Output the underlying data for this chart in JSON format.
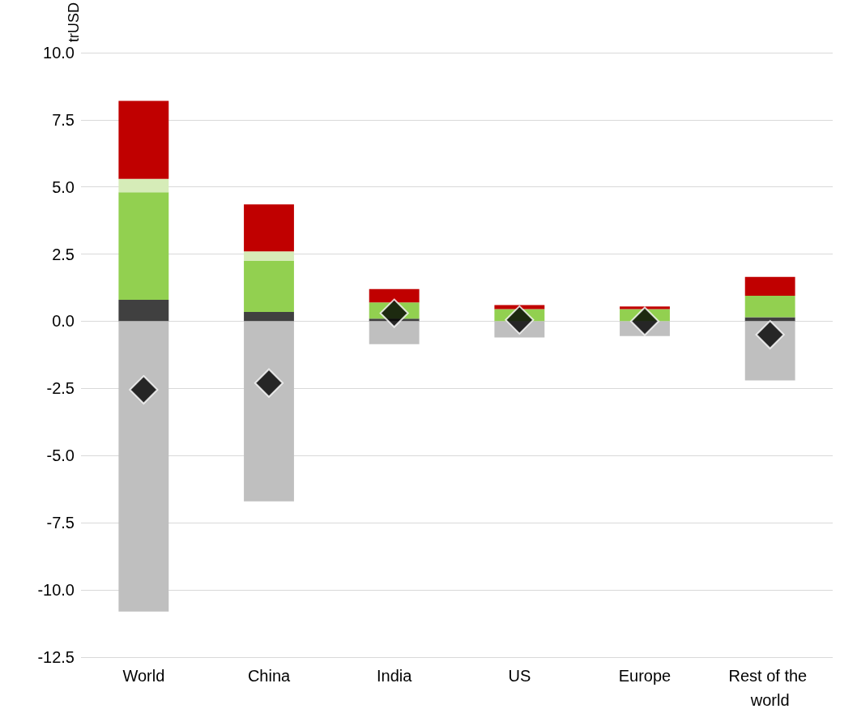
{
  "chart_data": {
    "type": "bar",
    "stacked": true,
    "ylabel": "trUSD",
    "categories": [
      "World",
      "China",
      "India",
      "US",
      "Europe",
      "Rest of the world"
    ],
    "series": [
      {
        "color": "#404040",
        "values": [
          0.8,
          0.35,
          0.1,
          null,
          0,
          0.15
        ]
      },
      {
        "color": "#92d050",
        "values": [
          4.0,
          1.9,
          0.6,
          0.45,
          0.45,
          0.8
        ]
      },
      {
        "color": "#d6ecb8",
        "values": [
          0.5,
          0.35,
          0,
          0,
          0,
          0
        ]
      },
      {
        "color": "#c00000",
        "values": [
          2.9,
          1.75,
          0.5,
          0.15,
          0.1,
          0.7
        ]
      },
      {
        "color": "#bfbfbf",
        "values": [
          -10.8,
          -6.7,
          -0.85,
          -0.6,
          -0.55,
          -2.2
        ]
      },
      {
        "type": "scatter",
        "marker": "diamond",
        "color": "#000000",
        "x": [
          "World",
          "China",
          "India",
          "US",
          "Europe",
          "Rest of the world"
        ],
        "values": [
          -2.55,
          -2.3,
          0.3,
          0.05,
          0,
          -0.5
        ]
      }
    ],
    "ylim": [
      -12.5,
      10
    ],
    "yticks": [
      {
        "value": -12.5,
        "label": "-12.5"
      },
      {
        "value": -10,
        "label": "-10.0"
      },
      {
        "value": -7.5,
        "label": "-7.5"
      },
      {
        "value": -5,
        "label": "-5.0"
      },
      {
        "value": -2.5,
        "label": "-2.5"
      },
      {
        "value": 0,
        "label": "0.0"
      },
      {
        "value": 2.5,
        "label": "2.5"
      },
      {
        "value": 5,
        "label": "5.0"
      },
      {
        "value": 7.5,
        "label": "7.5"
      },
      {
        "value": 10,
        "label": "10.0"
      }
    ],
    "grid": "y"
  }
}
